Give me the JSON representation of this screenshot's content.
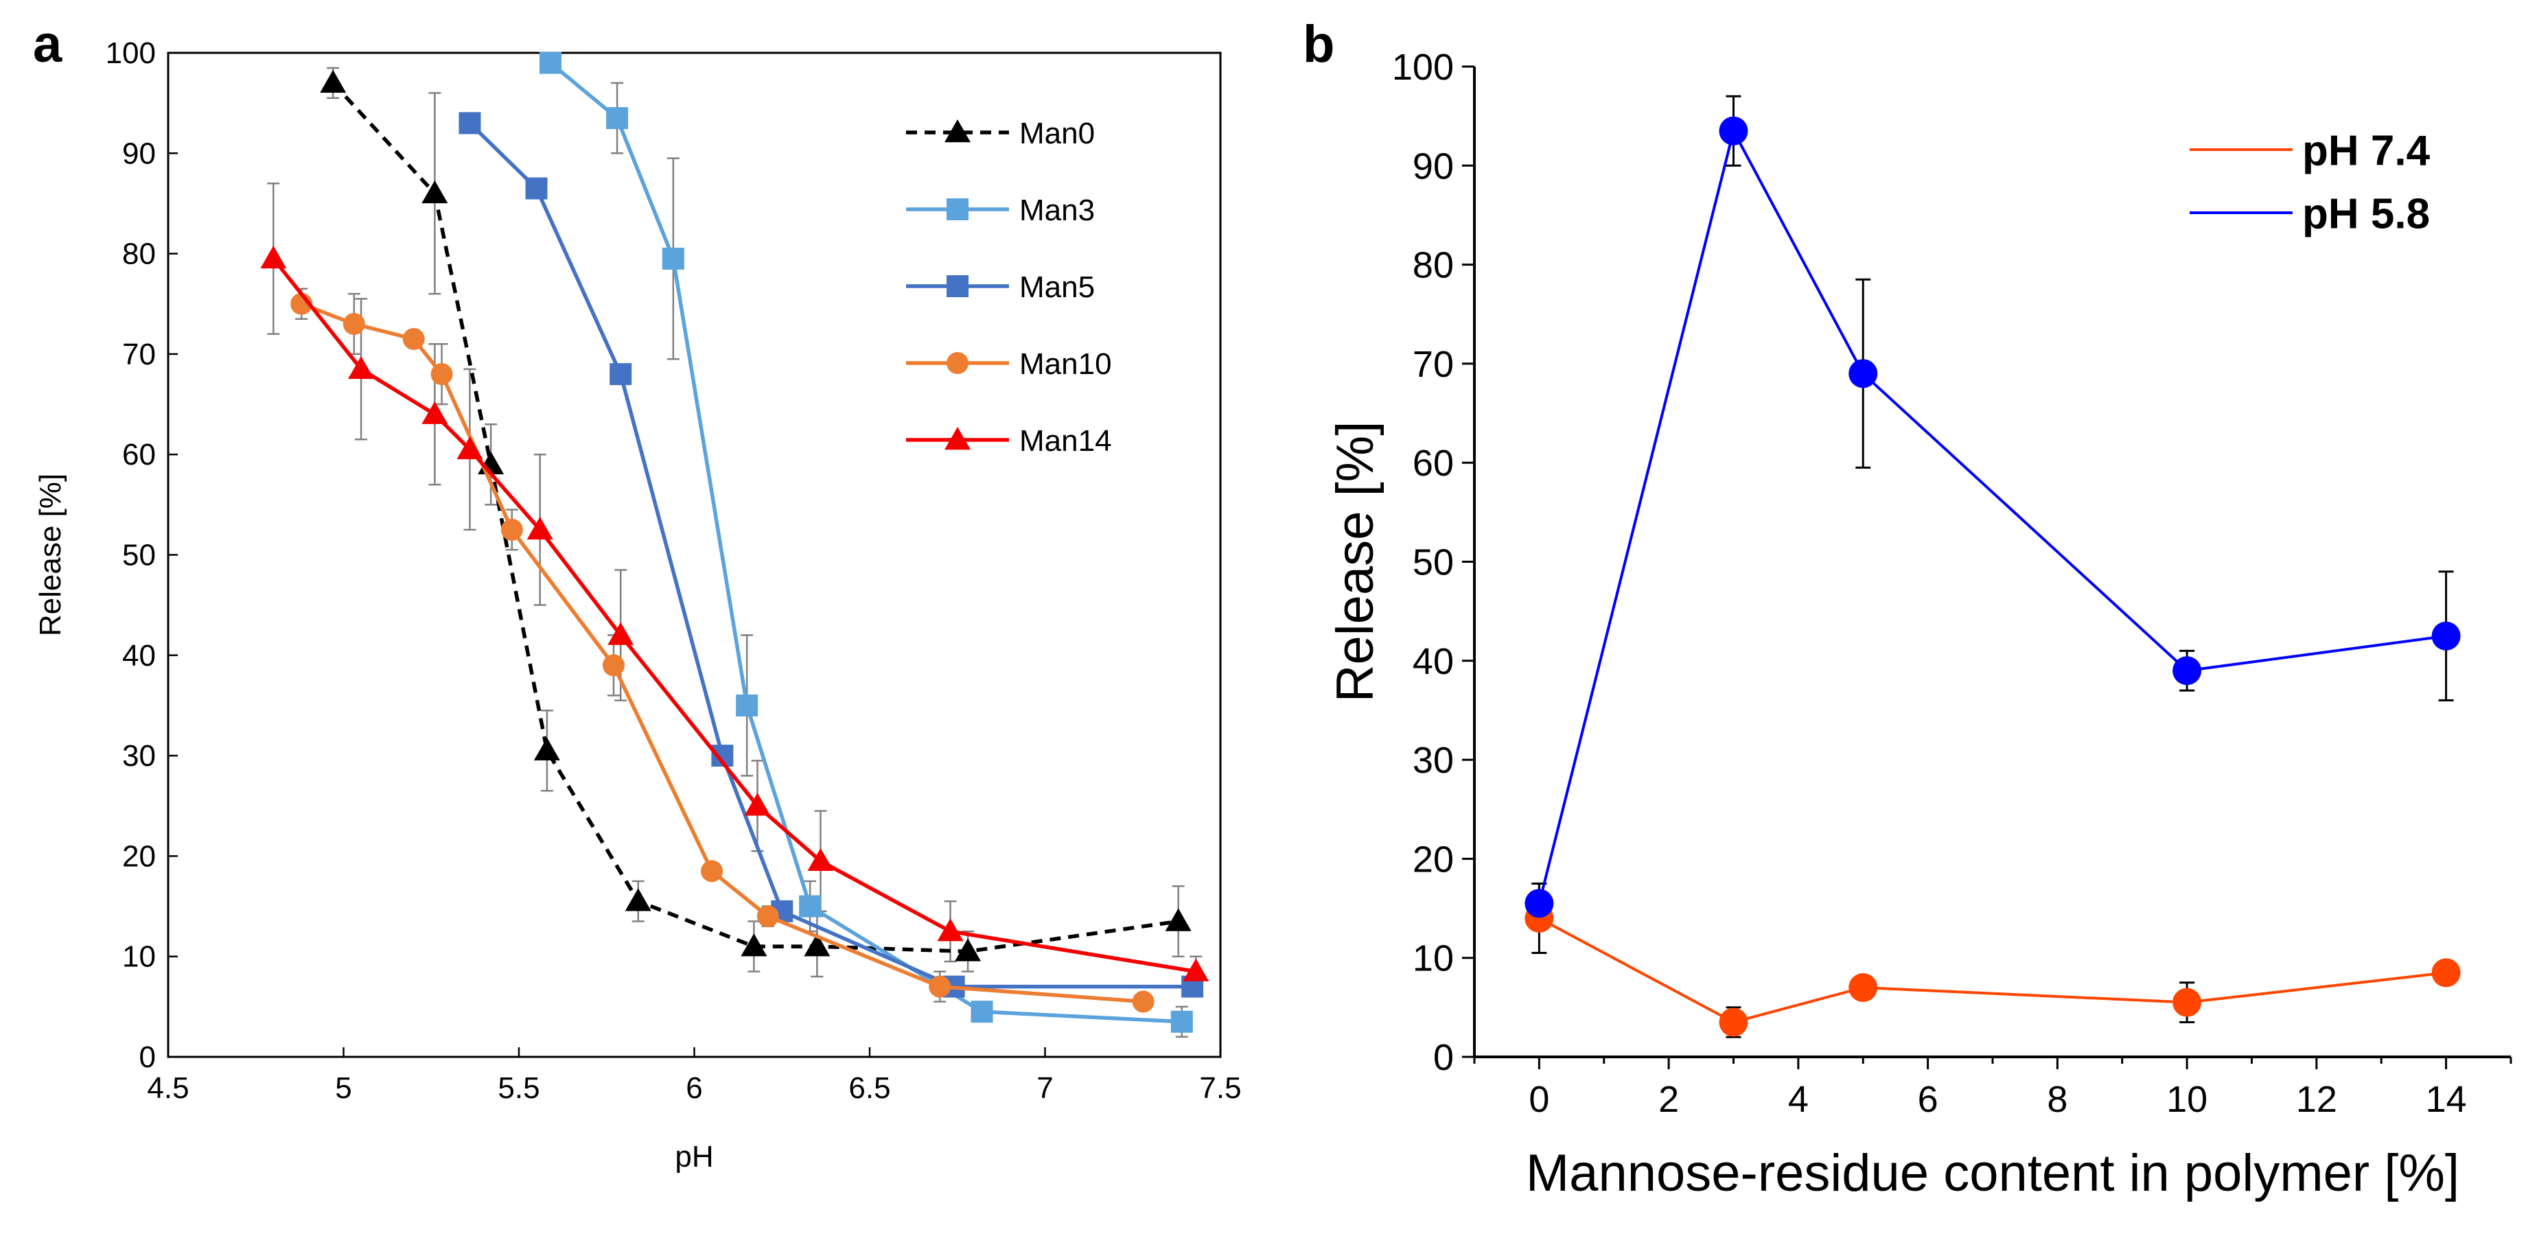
{
  "chart_data": [
    {
      "panel_label": "a",
      "type": "line",
      "xlabel": "pH",
      "ylabel": "Release [%]",
      "xlim": [
        4.5,
        7.5
      ],
      "ylim": [
        0,
        100
      ],
      "xticks": [
        "4.5",
        "5",
        "5.5",
        "6",
        "6.5",
        "7",
        "7.5"
      ],
      "yticks": [
        "0",
        "10",
        "20",
        "30",
        "40",
        "50",
        "60",
        "70",
        "80",
        "90",
        "100"
      ],
      "legend_position": "top-right",
      "series": [
        {
          "name": "Man0",
          "color": "#000000",
          "marker": "triangle",
          "dashed": true,
          "x": [
            4.97,
            5.26,
            5.42,
            5.58,
            5.84,
            6.17,
            6.35,
            6.78,
            7.38
          ],
          "y": [
            97,
            86,
            59,
            30.5,
            15.5,
            11,
            11,
            10.5,
            13.5
          ],
          "err": [
            1.5,
            10,
            4,
            4,
            2,
            2.5,
            3,
            2,
            3.5
          ]
        },
        {
          "name": "Man3",
          "color": "#5BA3DC",
          "marker": "square",
          "dashed": false,
          "x": [
            5.59,
            5.78,
            5.94,
            6.15,
            6.33,
            6.82,
            7.39
          ],
          "y": [
            99,
            93.5,
            79.5,
            35,
            15,
            4.5,
            3.5
          ],
          "err": [
            0,
            3.5,
            10,
            7,
            2.5,
            1,
            1.5
          ]
        },
        {
          "name": "Man5",
          "color": "#4472C4",
          "marker": "square",
          "dashed": false,
          "x": [
            5.36,
            5.55,
            5.79,
            6.08,
            6.25,
            6.74,
            7.42
          ],
          "y": [
            93,
            86.5,
            68,
            30,
            14.5,
            7,
            7
          ],
          "err": [
            0,
            0,
            0,
            0,
            0,
            0,
            0
          ]
        },
        {
          "name": "Man10",
          "color": "#ED7D31",
          "marker": "circle",
          "dashed": false,
          "x": [
            4.88,
            5.03,
            5.2,
            5.28,
            5.48,
            5.77,
            6.05,
            6.21,
            6.7,
            7.28
          ],
          "y": [
            75,
            73,
            71.5,
            68,
            52.5,
            39,
            18.5,
            14,
            7,
            5.5
          ],
          "err": [
            1.5,
            3,
            0,
            3,
            2,
            3,
            0,
            1,
            1.5,
            0
          ]
        },
        {
          "name": "Man14",
          "color": "#F50000",
          "marker": "triangle",
          "dashed": false,
          "x": [
            4.8,
            5.05,
            5.26,
            5.36,
            5.56,
            5.79,
            6.18,
            6.36,
            6.73,
            7.43
          ],
          "y": [
            79.5,
            68.5,
            64,
            60.5,
            52.5,
            42,
            25,
            19.5,
            12.5,
            8.5
          ],
          "err": [
            7.5,
            7,
            7,
            8,
            7.5,
            6.5,
            4.5,
            5,
            3,
            1.5
          ]
        }
      ]
    },
    {
      "panel_label": "b",
      "type": "line",
      "xlabel": "Mannose-residue content in polymer [%]",
      "ylabel": "Release [%]",
      "xlim": [
        -1,
        15
      ],
      "ylim": [
        0,
        100
      ],
      "xticks": [
        "0",
        "2",
        "4",
        "6",
        "8",
        "10",
        "12",
        "14"
      ],
      "yticks": [
        "0",
        "10",
        "20",
        "30",
        "40",
        "50",
        "60",
        "70",
        "80",
        "90",
        "100"
      ],
      "legend_position": "top-right",
      "series": [
        {
          "name": "pH 7.4",
          "color": "#FF4500",
          "marker": "circle",
          "x": [
            0,
            3,
            5,
            10,
            14
          ],
          "y": [
            14,
            3.5,
            7,
            5.5,
            8.5
          ],
          "err": [
            3.5,
            1.5,
            0.5,
            2,
            0.5
          ]
        },
        {
          "name": "pH 5.8",
          "color": "#0000FF",
          "marker": "circle",
          "x": [
            0,
            3,
            5,
            10,
            14
          ],
          "y": [
            15.5,
            93.5,
            69,
            39,
            42.5
          ],
          "err": [
            2,
            3.5,
            9.5,
            2,
            6.5
          ]
        }
      ]
    }
  ]
}
